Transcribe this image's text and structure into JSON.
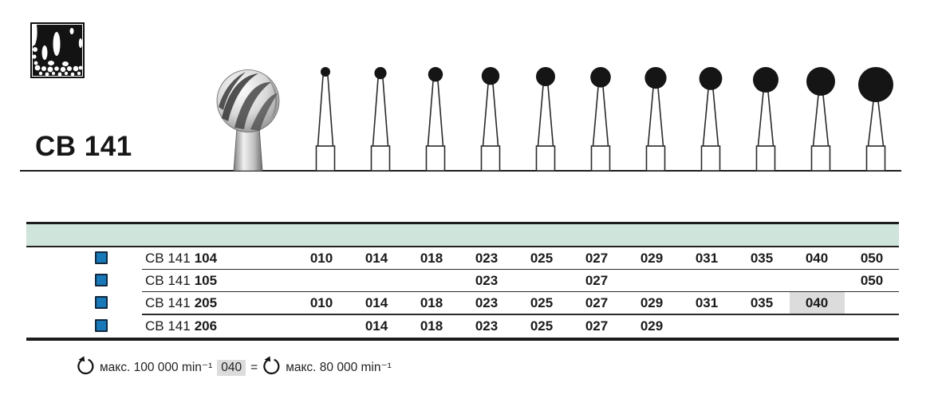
{
  "header": {
    "product_code": "CB 141",
    "tooth_icon": "tooth-radiograph-icon"
  },
  "sizes": {
    "columns": [
      "010",
      "014",
      "018",
      "023",
      "025",
      "027",
      "029",
      "031",
      "035",
      "040",
      "050"
    ]
  },
  "table": {
    "rows": [
      {
        "series": "CB 141",
        "code": "104",
        "available": [
          "010",
          "014",
          "018",
          "023",
          "025",
          "027",
          "029",
          "031",
          "035",
          "040",
          "050"
        ],
        "highlighted": []
      },
      {
        "series": "CB 141",
        "code": "105",
        "available": [
          "023",
          "027",
          "050"
        ],
        "highlighted": []
      },
      {
        "series": "CB 141",
        "code": "205",
        "available": [
          "010",
          "014",
          "018",
          "023",
          "025",
          "027",
          "029",
          "031",
          "035",
          "040"
        ],
        "highlighted": [
          "040"
        ]
      },
      {
        "series": "CB 141",
        "code": "206",
        "available": [
          "014",
          "018",
          "023",
          "025",
          "027",
          "029"
        ],
        "highlighted": []
      }
    ]
  },
  "footnote": {
    "left_speed": "макс. 100 000 min⁻¹",
    "badge": "040",
    "equals": "=",
    "right_speed": "макс. 80 000 min⁻¹"
  },
  "colors": {
    "band_green": "#cfe4da",
    "bullet_blue": "#1878b8",
    "bullet_border": "#12293e",
    "highlight_gray": "#dcdcdc",
    "line_dark": "#1c1c1c"
  }
}
